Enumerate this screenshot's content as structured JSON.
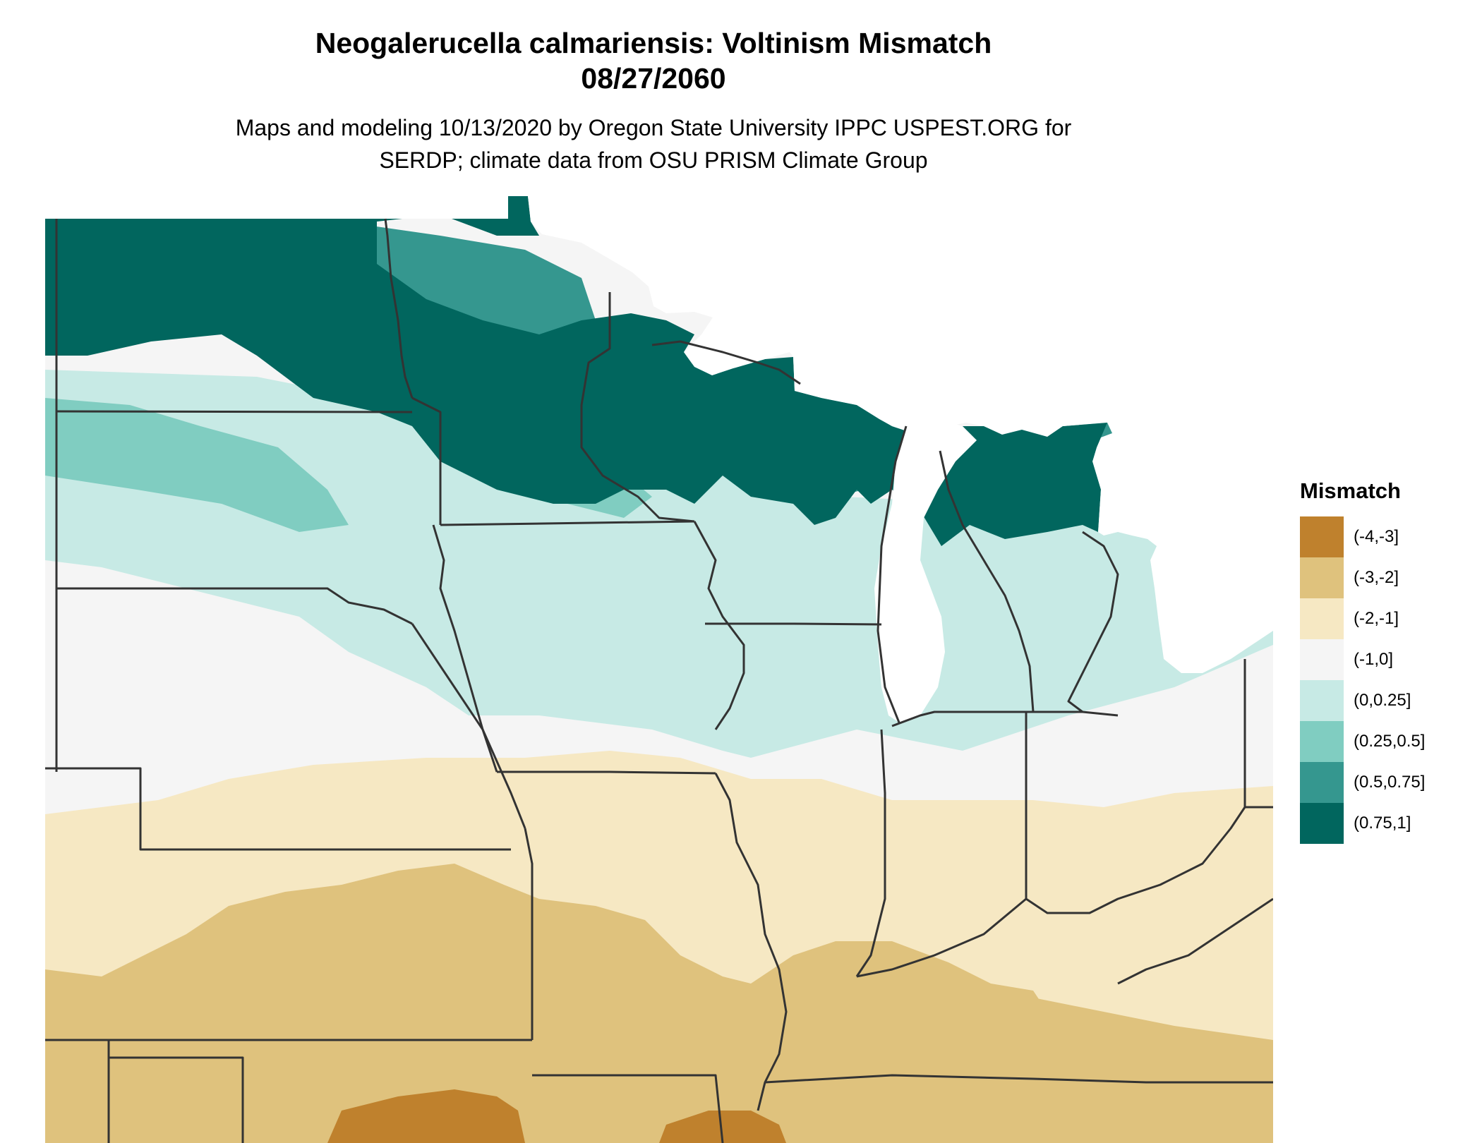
{
  "title": "Neogalerucella calmariensis: Voltinism Mismatch",
  "date": "08/27/2060",
  "subtitle_line1": "Maps and modeling 10/13/2020 by Oregon State University IPPC USPEST.ORG for",
  "subtitle_line2": "SERDP; climate data from OSU PRISM Climate Group",
  "legend": {
    "title": "Mismatch",
    "items": [
      {
        "label": "(-4,-3]",
        "color": "#bf812d"
      },
      {
        "label": "(-3,-2]",
        "color": "#dfc27d"
      },
      {
        "label": "(-2,-1]",
        "color": "#f6e8c3"
      },
      {
        "label": "(-1,0]",
        "color": "#f5f5f5"
      },
      {
        "label": "(0,0.25]",
        "color": "#c7eae5"
      },
      {
        "label": "(0.25,0.5]",
        "color": "#80cdc1"
      },
      {
        "label": "(0.5,0.75]",
        "color": "#35978f"
      },
      {
        "label": "(0.75,1]",
        "color": "#01665e"
      }
    ]
  },
  "colors": {
    "water": "#ffffff",
    "border": "#333333"
  }
}
